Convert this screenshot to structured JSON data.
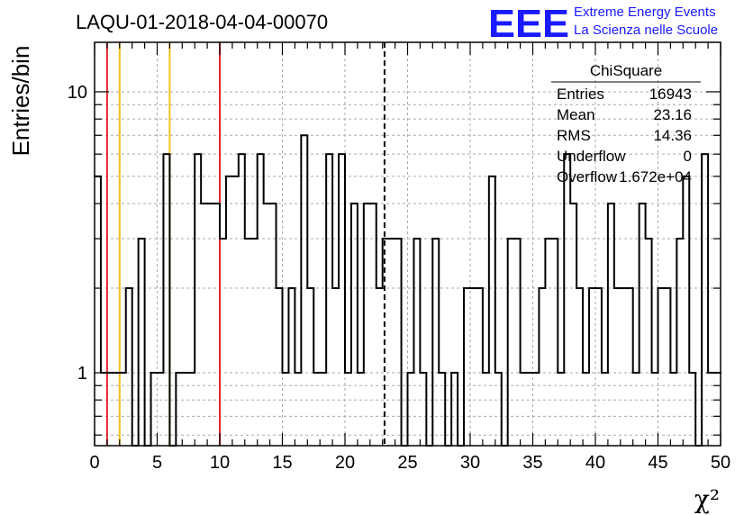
{
  "chart_data": {
    "type": "histogram",
    "title": "LAQU-01-2018-04-04-00070",
    "xlabel": "χ²",
    "ylabel": "Entries/bin",
    "xlim": [
      0,
      50
    ],
    "ylim": [
      0.55,
      15
    ],
    "y_scale": "log",
    "grid": true,
    "bin_width": 0.5,
    "x_ticks": [
      0,
      5,
      10,
      15,
      20,
      25,
      30,
      35,
      40,
      45,
      50
    ],
    "y_ticks": [
      1,
      10
    ],
    "bin_counts": [
      5,
      1,
      1,
      1,
      1,
      2,
      0,
      3,
      0,
      1,
      1,
      6,
      0,
      1,
      1,
      1,
      6,
      4,
      4,
      4,
      3,
      5,
      5,
      6,
      3,
      3,
      6,
      4,
      4,
      2,
      1,
      2,
      1,
      7,
      2,
      1,
      1,
      6,
      2,
      6,
      1,
      4,
      1,
      4,
      4,
      2,
      3,
      3,
      3,
      0,
      1,
      3,
      1,
      0,
      3,
      1,
      0,
      1,
      0,
      2,
      2,
      2,
      1,
      5,
      1,
      0,
      3,
      3,
      1,
      1,
      1,
      2,
      3,
      3,
      1,
      6,
      4,
      2,
      1,
      2,
      2,
      1,
      4,
      2,
      2,
      2,
      1,
      4,
      3,
      1,
      2,
      2,
      1,
      3,
      5,
      1,
      0,
      6,
      1,
      1
    ],
    "reference_lines": [
      {
        "x": 1,
        "color": "#e8262d",
        "style": "solid"
      },
      {
        "x": 2,
        "color": "#f4c01c",
        "style": "solid"
      },
      {
        "x": 6,
        "color": "#f4c01c",
        "style": "solid"
      },
      {
        "x": 10,
        "color": "#e8262d",
        "style": "solid"
      },
      {
        "x": 23.16,
        "color": "#000000",
        "style": "dashed"
      }
    ]
  },
  "stats_box": {
    "title": "ChiSquare",
    "rows": [
      {
        "label": "Entries",
        "value": "16943"
      },
      {
        "label": "Mean",
        "value": "23.16"
      },
      {
        "label": "RMS",
        "value": "14.36"
      },
      {
        "label": "Underflow",
        "value": "0"
      },
      {
        "label": "Overflow",
        "value": "1.672e+04"
      }
    ]
  },
  "logo": {
    "mark": "EEE",
    "line1": "Extreme Energy Events",
    "line2": "La Scienza nelle Scuole"
  }
}
